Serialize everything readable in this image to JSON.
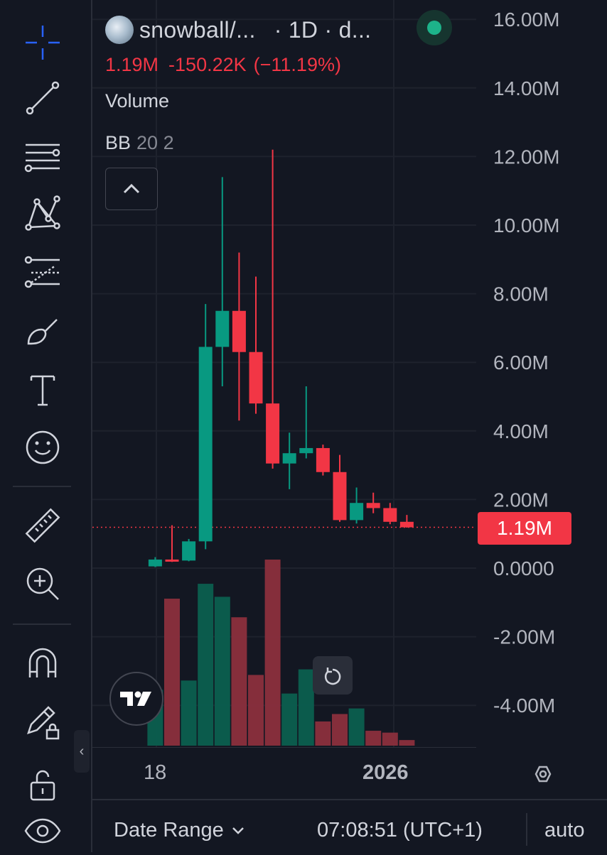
{
  "symbol": {
    "title": "snowball/...",
    "interval_suffix": "· 1D · d...",
    "last_value": "1.19M",
    "change": "-150.22K",
    "change_pct": "(−11.19%)",
    "status_color": "#1db38a"
  },
  "indicators": {
    "volume_label": "Volume",
    "bb_name": "BB",
    "bb_params": "20 2"
  },
  "price_axis": {
    "labels": [
      "16.00M",
      "14.00M",
      "12.00M",
      "10.00M",
      "8.00M",
      "6.00M",
      "4.00M",
      "2.00M",
      "0.0000",
      "-2.00M",
      "-4.00M"
    ],
    "current_price_label": "1.19M"
  },
  "time_axis": {
    "labels": [
      {
        "text": "18",
        "bold": false
      },
      {
        "text": "2026",
        "bold": true
      }
    ]
  },
  "toolbar": {
    "tools": [
      "crosshair-icon",
      "trend-line-icon",
      "fib-retracement-icon",
      "pattern-icon",
      "forecast-icon",
      "brush-icon",
      "text-icon",
      "emoji-icon",
      "ruler-icon",
      "zoom-in-icon",
      "magnet-icon",
      "lock-drawing-icon",
      "lock-icon",
      "eye-icon"
    ]
  },
  "bottom_bar": {
    "date_range": "Date Range",
    "clock": "07:08:51 (UTC+1)",
    "scale_mode": "auto"
  },
  "colors": {
    "up": "#089981",
    "down": "#f23645",
    "background": "#131722",
    "grid": "#1e222d",
    "text": "#d1d4dc"
  },
  "chart_data": {
    "type": "candlestick",
    "y_unit": "M",
    "ylim": [
      -5.2,
      16.0
    ],
    "current_price": 1.19,
    "candles": [
      {
        "open": 0.05,
        "high": 0.32,
        "low": 0.03,
        "close": 0.25
      },
      {
        "open": 0.25,
        "high": 1.25,
        "low": 0.18,
        "close": 0.22
      },
      {
        "open": 0.22,
        "high": 0.85,
        "low": 0.2,
        "close": 0.78
      },
      {
        "open": 0.78,
        "high": 7.7,
        "low": 0.55,
        "close": 6.45
      },
      {
        "open": 6.45,
        "high": 11.4,
        "low": 5.3,
        "close": 7.5
      },
      {
        "open": 7.5,
        "high": 9.2,
        "low": 4.3,
        "close": 6.3
      },
      {
        "open": 6.3,
        "high": 8.5,
        "low": 4.5,
        "close": 4.8
      },
      {
        "open": 4.8,
        "high": 12.2,
        "low": 2.9,
        "close": 3.05
      },
      {
        "open": 3.05,
        "high": 3.95,
        "low": 2.3,
        "close": 3.35
      },
      {
        "open": 3.35,
        "high": 5.3,
        "low": 3.2,
        "close": 3.5
      },
      {
        "open": 3.5,
        "high": 3.6,
        "low": 2.7,
        "close": 2.8
      },
      {
        "open": 2.8,
        "high": 3.3,
        "low": 1.35,
        "close": 1.4
      },
      {
        "open": 1.4,
        "high": 2.35,
        "low": 1.3,
        "close": 1.9
      },
      {
        "open": 1.9,
        "high": 2.2,
        "low": 1.6,
        "close": 1.75
      },
      {
        "open": 1.75,
        "high": 1.9,
        "low": 1.28,
        "close": 1.35
      },
      {
        "open": 1.35,
        "high": 1.55,
        "low": 1.18,
        "close": 1.19
      }
    ],
    "volume_relative": [
      0.3,
      0.79,
      0.35,
      0.87,
      0.8,
      0.69,
      0.38,
      1.0,
      0.28,
      0.41,
      0.13,
      0.17,
      0.2,
      0.08,
      0.07,
      0.03
    ]
  }
}
